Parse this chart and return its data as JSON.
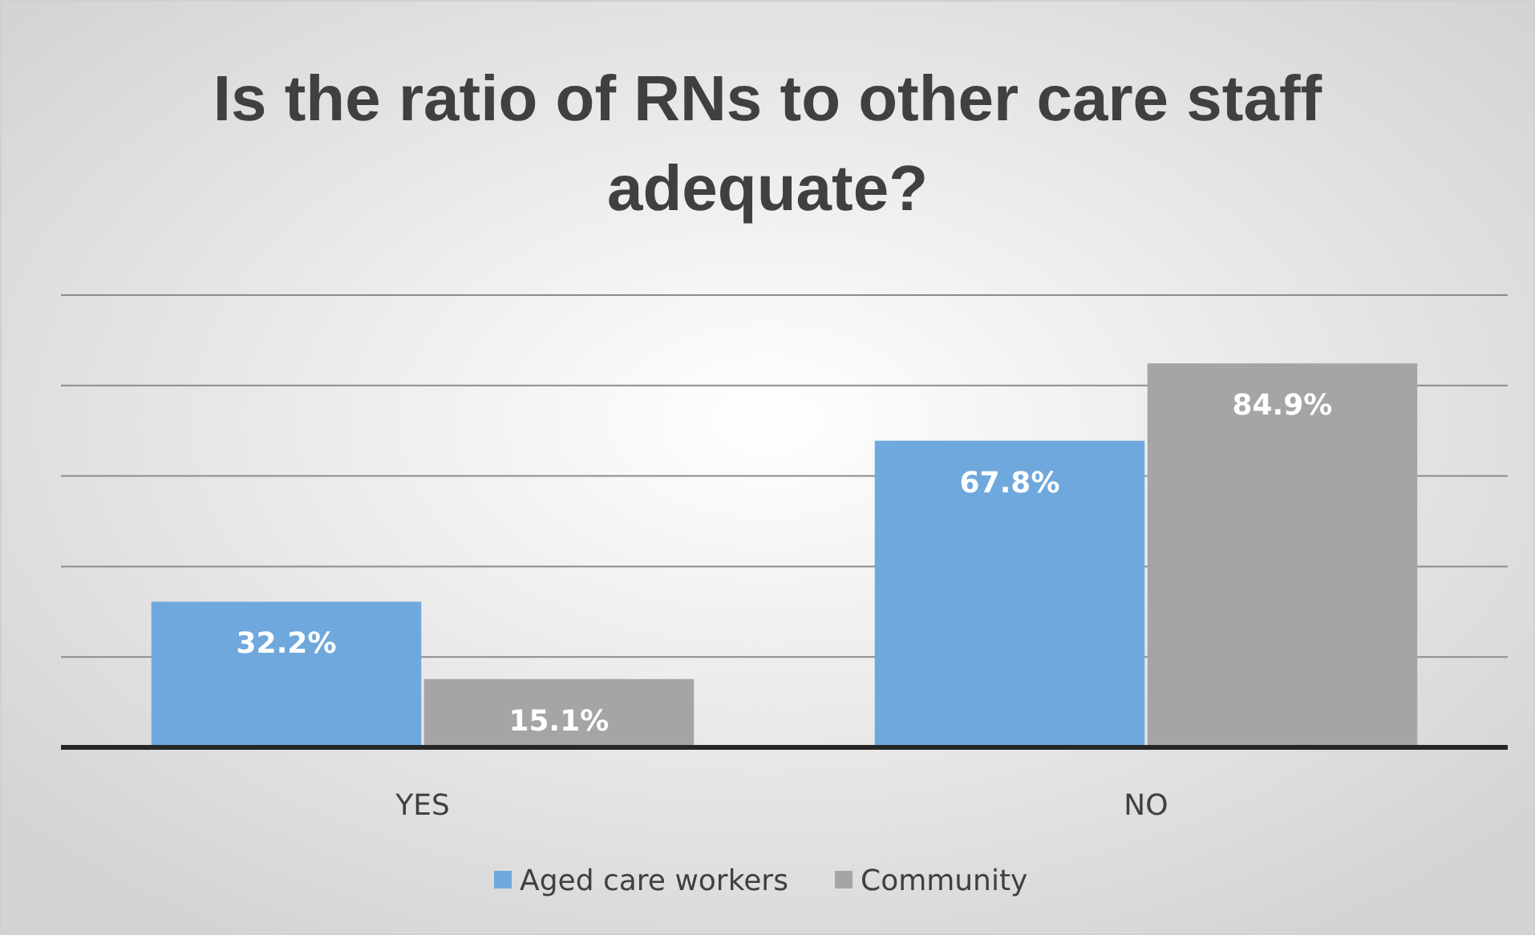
{
  "chart_data": {
    "type": "bar",
    "title": "Is the ratio of RNs to other care staff adequate?",
    "categories": [
      "YES",
      "NO"
    ],
    "series": [
      {
        "name": "Aged care workers",
        "color": "#6fa8dc",
        "values": [
          32.2,
          67.8
        ],
        "value_labels": [
          "32.2%",
          "67.8%"
        ]
      },
      {
        "name": "Community",
        "color": "#a5a5a5",
        "values": [
          15.1,
          84.9
        ],
        "value_labels": [
          "15.1%",
          "84.9%"
        ]
      }
    ],
    "tick_labels": "x",
    "grid": "y",
    "legend": "bottom"
  }
}
